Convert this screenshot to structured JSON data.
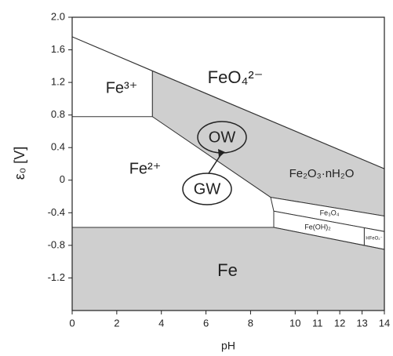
{
  "chart_data": {
    "type": "pourbaix",
    "x_label": "pH",
    "y_label": "ε₀ [V]",
    "xlim": [
      0,
      14
    ],
    "ylim": [
      -1.6,
      2.0
    ],
    "xticks": [
      0,
      2,
      4,
      6,
      8,
      10,
      11,
      12,
      13,
      14
    ],
    "yticks": [
      {
        "value": 2.0,
        "label": "2.0"
      },
      1.6,
      1.2,
      0.8,
      0.4,
      0,
      -0.4,
      -0.8,
      -1.2
    ],
    "regions": [
      {
        "color": "#ffffff",
        "x": [
          0,
          14,
          14,
          0
        ],
        "y": [
          2.0,
          2.0,
          0.14,
          1.76
        ]
      },
      {
        "color": "#ffffff",
        "x": [
          0,
          3.6,
          3.6,
          0
        ],
        "y": [
          1.76,
          1.34,
          0.78,
          0.78
        ]
      },
      {
        "color": "#cfcfcf",
        "x": [
          3.6,
          14,
          14,
          8.9,
          3.6
        ],
        "y": [
          1.34,
          0.14,
          -0.44,
          -0.21,
          0.78
        ]
      },
      {
        "color": "#ffffff",
        "x": [
          8.9,
          14,
          14,
          9.04
        ],
        "y": [
          -0.21,
          -0.44,
          -0.63,
          -0.38
        ]
      },
      {
        "color": "#ffffff",
        "x": [
          9.04,
          13.1,
          13.1,
          9.04
        ],
        "y": [
          -0.38,
          -0.585,
          -0.8,
          -0.58
        ]
      },
      {
        "color": "#ffffff",
        "x": [
          13.1,
          14,
          14,
          13.1
        ],
        "y": [
          -0.585,
          -0.63,
          -0.85,
          -0.8
        ]
      },
      {
        "color": "#cfcfcf",
        "x": [
          0,
          9.04,
          14,
          14,
          0
        ],
        "y": [
          -0.58,
          -0.58,
          -0.85,
          -1.6,
          -1.6
        ]
      }
    ],
    "region_labels": [
      "FeO₄²⁻",
      "Fe³⁺",
      "Fe²⁺",
      "Fe₂O₃·nH₂O",
      "Fe₃O₄",
      "Fe(OH)₂",
      "HFeO₂⁻",
      "Fe"
    ],
    "annotations": [
      "OW",
      "GW"
    ]
  }
}
